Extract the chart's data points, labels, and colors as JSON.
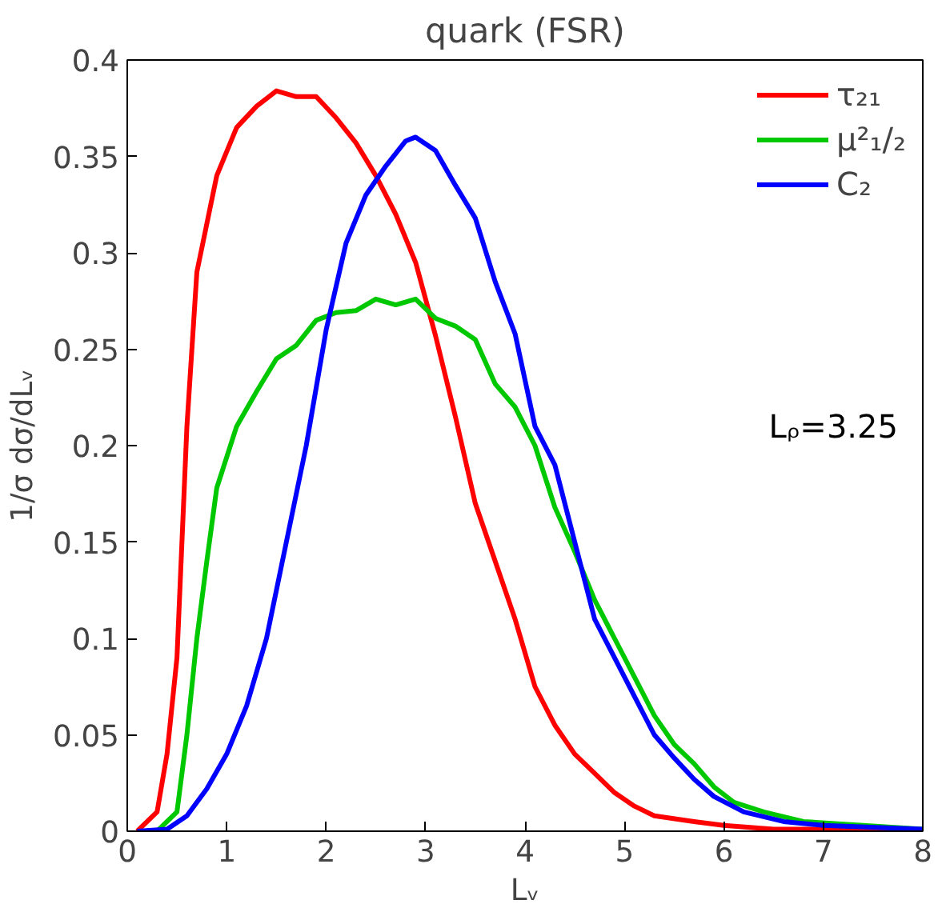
{
  "chart_data": {
    "type": "line",
    "title": "quark (FSR)",
    "xlabel": "Lᵥ",
    "ylabel": "1/σ dσ/dLᵥ",
    "xlim": [
      0,
      8
    ],
    "ylim": [
      0,
      0.4
    ],
    "xticks": [
      0,
      1,
      2,
      3,
      4,
      5,
      6,
      7,
      8
    ],
    "yticks": [
      0,
      0.05,
      0.1,
      0.15,
      0.2,
      0.25,
      0.3,
      0.35,
      0.4
    ],
    "grid": false,
    "legend": "top right",
    "marker": "none",
    "line_style": "solid",
    "annotations": [
      "Lᵨ=3.25"
    ],
    "series": [
      {
        "name": "τ₂₁",
        "color": "#ff0000",
        "x": [
          0.1,
          0.3,
          0.4,
          0.5,
          0.6,
          0.7,
          0.9,
          1.1,
          1.3,
          1.5,
          1.7,
          1.9,
          2.1,
          2.3,
          2.5,
          2.7,
          2.9,
          3.1,
          3.3,
          3.5,
          3.7,
          3.9,
          4.1,
          4.3,
          4.5,
          4.7,
          4.9,
          5.1,
          5.3,
          5.7,
          6.0,
          6.5,
          7.0,
          8.0
        ],
        "values": [
          0,
          0.01,
          0.04,
          0.09,
          0.21,
          0.29,
          0.34,
          0.365,
          0.376,
          0.384,
          0.381,
          0.381,
          0.37,
          0.357,
          0.34,
          0.32,
          0.295,
          0.257,
          0.215,
          0.17,
          0.14,
          0.11,
          0.075,
          0.055,
          0.04,
          0.03,
          0.02,
          0.013,
          0.008,
          0.005,
          0.003,
          0.001,
          0.001,
          0
        ]
      },
      {
        "name": "μ²₁/₂",
        "color": "#00c800",
        "x": [
          0.3,
          0.5,
          0.6,
          0.7,
          0.8,
          0.9,
          1.1,
          1.3,
          1.5,
          1.7,
          1.9,
          2.1,
          2.3,
          2.5,
          2.7,
          2.9,
          3.1,
          3.3,
          3.5,
          3.7,
          3.9,
          4.1,
          4.3,
          4.5,
          4.7,
          4.9,
          5.1,
          5.3,
          5.5,
          5.7,
          5.9,
          6.1,
          6.4,
          6.8,
          8.0
        ],
        "values": [
          0,
          0.01,
          0.05,
          0.1,
          0.14,
          0.178,
          0.21,
          0.228,
          0.245,
          0.252,
          0.265,
          0.269,
          0.27,
          0.276,
          0.273,
          0.276,
          0.266,
          0.262,
          0.255,
          0.232,
          0.22,
          0.2,
          0.168,
          0.145,
          0.12,
          0.1,
          0.08,
          0.06,
          0.045,
          0.035,
          0.023,
          0.015,
          0.01,
          0.005,
          0.001
        ]
      },
      {
        "name": "C₂",
        "color": "#0000ff",
        "x": [
          0.1,
          0.4,
          0.6,
          0.8,
          1.0,
          1.2,
          1.4,
          1.6,
          1.8,
          2.0,
          2.2,
          2.4,
          2.6,
          2.8,
          2.9,
          3.1,
          3.3,
          3.5,
          3.7,
          3.9,
          4.1,
          4.3,
          4.5,
          4.7,
          4.9,
          5.1,
          5.3,
          5.5,
          5.7,
          5.9,
          6.2,
          6.6,
          7.0,
          8.0
        ],
        "values": [
          0,
          0.001,
          0.008,
          0.022,
          0.04,
          0.065,
          0.1,
          0.15,
          0.2,
          0.26,
          0.305,
          0.33,
          0.345,
          0.358,
          0.36,
          0.353,
          0.335,
          0.318,
          0.285,
          0.258,
          0.21,
          0.19,
          0.15,
          0.11,
          0.09,
          0.07,
          0.05,
          0.038,
          0.027,
          0.018,
          0.01,
          0.005,
          0.003,
          0.001
        ]
      }
    ]
  }
}
